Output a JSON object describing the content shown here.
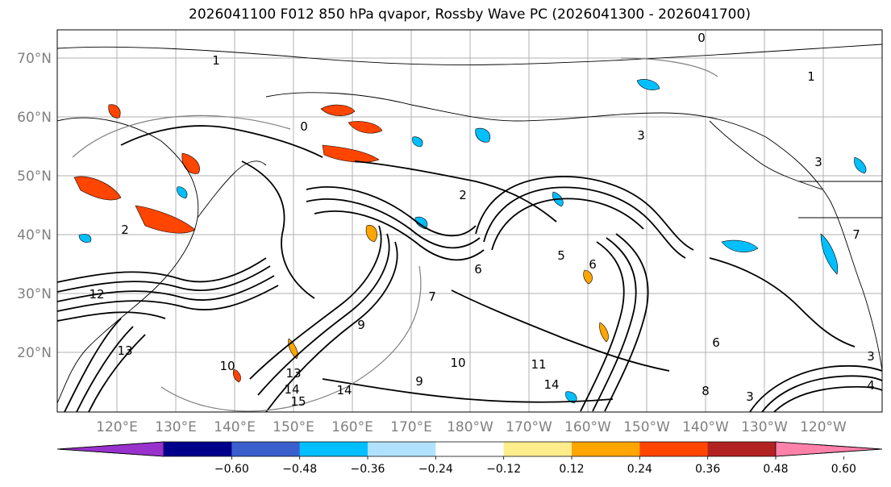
{
  "title": "2026041100 F012 850 hPa qvapor, Rossby Wave PC (2026041300 - 2026041700)",
  "lat_labels": [
    "70°N",
    "60°N",
    "50°N",
    "40°N",
    "30°N",
    "20°N"
  ],
  "lon_labels": [
    "120°E",
    "130°E",
    "140°E",
    "150°E",
    "160°E",
    "170°E",
    "180°W",
    "170°W",
    "160°W",
    "150°W",
    "140°W",
    "130°W",
    "120°W"
  ],
  "colorbar": {
    "colors": [
      "#9932CC",
      "#00008B",
      "#3A5FCD",
      "#00BFFF",
      "#B0E2FF",
      "#FFFFFF",
      "#FFEC8B",
      "#FFA500",
      "#FF4500",
      "#B22222",
      "#FF82AB"
    ],
    "tick_labels": [
      "−0.60",
      "−0.48",
      "−0.36",
      "−0.24",
      "−0.12",
      "0.12",
      "0.24",
      "0.36",
      "0.48",
      "0.60"
    ]
  },
  "contour_labels": [
    "1",
    "2",
    "0",
    "2",
    "3",
    "5",
    "6",
    "7",
    "9",
    "6",
    "10",
    "11",
    "13",
    "14",
    "15",
    "14",
    "12",
    "13",
    "7",
    "9",
    "10",
    "14",
    "3",
    "4",
    "3",
    "6",
    "8",
    "3",
    "0",
    "1"
  ]
}
